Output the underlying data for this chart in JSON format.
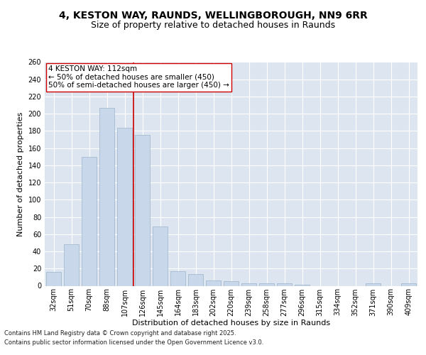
{
  "title_line1": "4, KESTON WAY, RAUNDS, WELLINGBOROUGH, NN9 6RR",
  "title_line2": "Size of property relative to detached houses in Raunds",
  "xlabel": "Distribution of detached houses by size in Raunds",
  "ylabel": "Number of detached properties",
  "categories": [
    "32sqm",
    "51sqm",
    "70sqm",
    "88sqm",
    "107sqm",
    "126sqm",
    "145sqm",
    "164sqm",
    "183sqm",
    "202sqm",
    "220sqm",
    "239sqm",
    "258sqm",
    "277sqm",
    "296sqm",
    "315sqm",
    "334sqm",
    "352sqm",
    "371sqm",
    "390sqm",
    "409sqm"
  ],
  "values": [
    16,
    48,
    150,
    207,
    184,
    175,
    69,
    17,
    14,
    6,
    5,
    3,
    3,
    3,
    1,
    0,
    0,
    0,
    3,
    0,
    3
  ],
  "bar_color": "#c8d8ea",
  "bar_edge_color": "#9ab4cc",
  "vline_x_index": 4,
  "vline_color": "#cc0000",
  "annotation_text": "4 KESTON WAY: 112sqm\n← 50% of detached houses are smaller (450)\n50% of semi-detached houses are larger (450) →",
  "annotation_box_color": "#ffffff",
  "annotation_box_edge": "#cc0000",
  "ylim": [
    0,
    260
  ],
  "yticks": [
    0,
    20,
    40,
    60,
    80,
    100,
    120,
    140,
    160,
    180,
    200,
    220,
    240,
    260
  ],
  "background_color": "#dde6f0",
  "footer_line1": "Contains HM Land Registry data © Crown copyright and database right 2025.",
  "footer_line2": "Contains public sector information licensed under the Open Government Licence v3.0.",
  "title_fontsize": 10,
  "subtitle_fontsize": 9,
  "axis_label_fontsize": 8,
  "tick_fontsize": 7,
  "annotation_fontsize": 7.5,
  "footer_fontsize": 6
}
